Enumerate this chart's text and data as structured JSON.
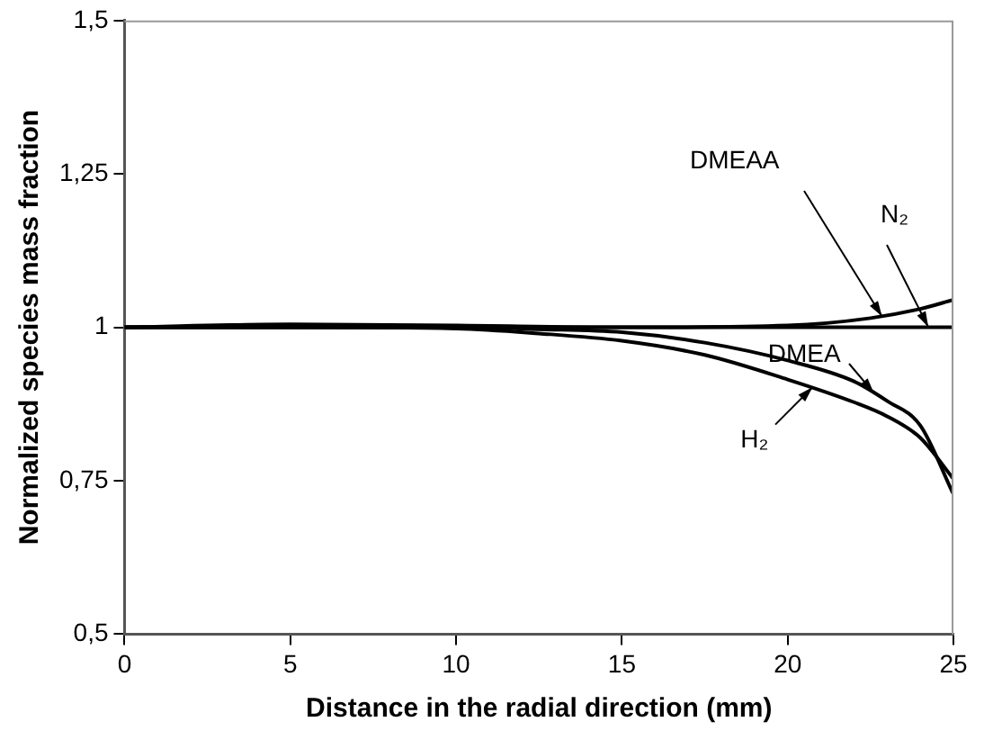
{
  "chart_data": {
    "type": "line",
    "xlabel": "Distance in the radial direction (mm)",
    "ylabel": "Normalized species mass fraction",
    "xlim": [
      0,
      25
    ],
    "xticks": [
      0,
      5,
      10,
      15,
      20,
      25
    ],
    "ylim": [
      0.5,
      1.5
    ],
    "yticks": [
      {
        "value": 0.5,
        "label": "0,5"
      },
      {
        "value": 0.75,
        "label": "0,75"
      },
      {
        "value": 1,
        "label": "1"
      },
      {
        "value": 1.25,
        "label": "1,25"
      },
      {
        "value": 1.5,
        "label": "1,5"
      }
    ],
    "grid": false,
    "legend": false,
    "marker": "none",
    "line_style": "solid",
    "series": [
      {
        "name": "DMEAA",
        "color": "#000000",
        "x": [
          0,
          5,
          10,
          15,
          20,
          22.5,
          24,
          25
        ],
        "values": [
          1,
          1.005,
          1.003,
          1,
          1.003,
          1.015,
          1.03,
          1.045
        ]
      },
      {
        "name": "N₂",
        "color": "#000000",
        "x": [
          0,
          5,
          10,
          15,
          20,
          25
        ],
        "values": [
          1,
          1,
          1,
          1,
          1,
          1
        ]
      },
      {
        "name": "H₂",
        "color": "#000000",
        "x": [
          0,
          5,
          10,
          12.5,
          15,
          17.5,
          20,
          22,
          23,
          24,
          25
        ],
        "values": [
          1,
          1,
          0.998,
          0.99,
          0.978,
          0.955,
          0.915,
          0.878,
          0.855,
          0.82,
          0.753
        ]
      },
      {
        "name": "DMEA",
        "color": "#000000",
        "x": [
          0,
          5,
          10,
          12.5,
          15,
          17.5,
          20,
          22,
          23,
          24,
          25
        ],
        "values": [
          1,
          1,
          1,
          0.997,
          0.992,
          0.975,
          0.946,
          0.912,
          0.88,
          0.84,
          0.728
        ]
      }
    ]
  }
}
